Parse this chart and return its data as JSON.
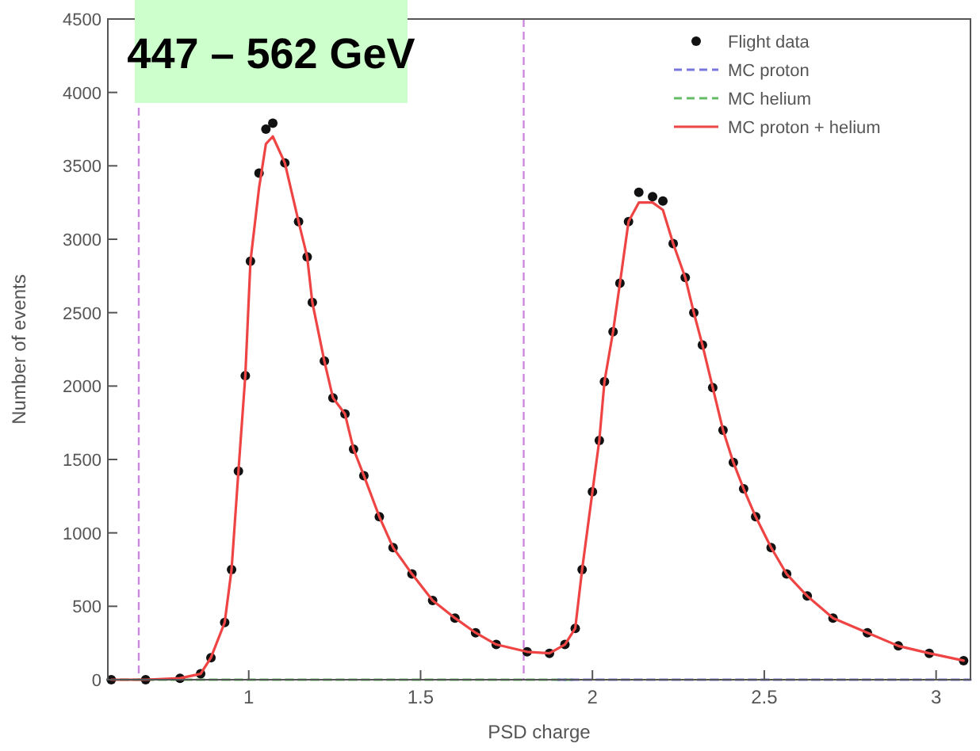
{
  "chart_data": {
    "type": "line",
    "title": "447 – 562 GeV",
    "xlabel": "PSD charge",
    "ylabel": "Number of events",
    "xlim": [
      0.59,
      3.1
    ],
    "xticks": [
      1,
      1.5,
      2,
      2.5,
      3
    ],
    "ylim": [
      0,
      4500
    ],
    "yticks": [
      0,
      500,
      1000,
      1500,
      2000,
      2500,
      3000,
      3500,
      4000,
      4500
    ],
    "grid": false,
    "legend": "top right",
    "ref_lines": [
      {
        "axis": "x",
        "value": 0.68,
        "color": "#cc88dd",
        "line_style": "dashed"
      },
      {
        "axis": "x",
        "value": 1.8,
        "color": "#cc88dd",
        "line_style": "dashed"
      }
    ],
    "series": [
      {
        "name": "MC helium",
        "color": "#66bb66",
        "line_style": "dashed",
        "marker": "none",
        "x": [
          0.59,
          1.0,
          1.5,
          1.95
        ],
        "values": [
          0,
          0,
          0,
          0
        ]
      },
      {
        "name": "MC proton",
        "color": "#7777dd",
        "line_style": "dashed",
        "marker": "none",
        "x": [
          1.9,
          2.5,
          3.1
        ],
        "values": [
          0,
          0,
          0
        ]
      },
      {
        "name": "Flight data",
        "type": "scatter",
        "color": "#111111",
        "marker": "circle",
        "x": [
          0.6,
          0.7,
          0.8,
          0.86,
          0.89,
          0.93,
          0.95,
          0.97,
          0.99,
          1.005,
          1.03,
          1.05,
          1.07,
          1.105,
          1.145,
          1.17,
          1.185,
          1.22,
          1.245,
          1.28,
          1.305,
          1.335,
          1.38,
          1.42,
          1.475,
          1.535,
          1.6,
          1.66,
          1.72,
          1.81,
          1.875,
          1.92,
          1.95,
          1.97,
          2.0,
          2.02,
          2.035,
          2.06,
          2.08,
          2.105,
          2.135,
          2.175,
          2.205,
          2.235,
          2.27,
          2.295,
          2.32,
          2.35,
          2.38,
          2.41,
          2.44,
          2.475,
          2.52,
          2.565,
          2.625,
          2.7,
          2.8,
          2.89,
          2.98,
          3.08
        ],
        "values": [
          0,
          0,
          10,
          40,
          150,
          390,
          750,
          1420,
          2070,
          2850,
          3450,
          3750,
          3790,
          3520,
          3120,
          2880,
          2570,
          2170,
          1920,
          1810,
          1570,
          1390,
          1110,
          900,
          720,
          540,
          420,
          320,
          240,
          190,
          180,
          240,
          350,
          750,
          1280,
          1630,
          2030,
          2370,
          2700,
          3120,
          3320,
          3290,
          3260,
          2970,
          2740,
          2500,
          2280,
          1990,
          1700,
          1480,
          1300,
          1110,
          900,
          720,
          570,
          420,
          320,
          230,
          180,
          130
        ]
      },
      {
        "name": "MC proton + helium",
        "color": "#ee4444",
        "line_style": "solid",
        "marker": "none",
        "x": [
          0.6,
          0.7,
          0.8,
          0.86,
          0.89,
          0.93,
          0.95,
          0.97,
          0.99,
          1.005,
          1.03,
          1.05,
          1.07,
          1.105,
          1.145,
          1.17,
          1.185,
          1.22,
          1.245,
          1.28,
          1.305,
          1.335,
          1.38,
          1.42,
          1.475,
          1.535,
          1.6,
          1.66,
          1.72,
          1.81,
          1.875,
          1.92,
          1.95,
          1.97,
          2.0,
          2.02,
          2.035,
          2.06,
          2.08,
          2.105,
          2.135,
          2.175,
          2.205,
          2.235,
          2.27,
          2.295,
          2.32,
          2.35,
          2.38,
          2.41,
          2.44,
          2.475,
          2.52,
          2.565,
          2.625,
          2.7,
          2.8,
          2.89,
          2.98,
          3.08
        ],
        "values": [
          0,
          0,
          10,
          40,
          150,
          390,
          750,
          1420,
          2070,
          2850,
          3350,
          3650,
          3700,
          3520,
          3120,
          2880,
          2570,
          2170,
          1920,
          1810,
          1570,
          1390,
          1110,
          900,
          720,
          540,
          420,
          320,
          240,
          190,
          180,
          240,
          350,
          750,
          1280,
          1630,
          2030,
          2370,
          2700,
          3120,
          3250,
          3250,
          3200,
          2970,
          2740,
          2500,
          2280,
          1990,
          1700,
          1480,
          1300,
          1110,
          900,
          720,
          570,
          420,
          320,
          230,
          180,
          130
        ]
      }
    ]
  }
}
